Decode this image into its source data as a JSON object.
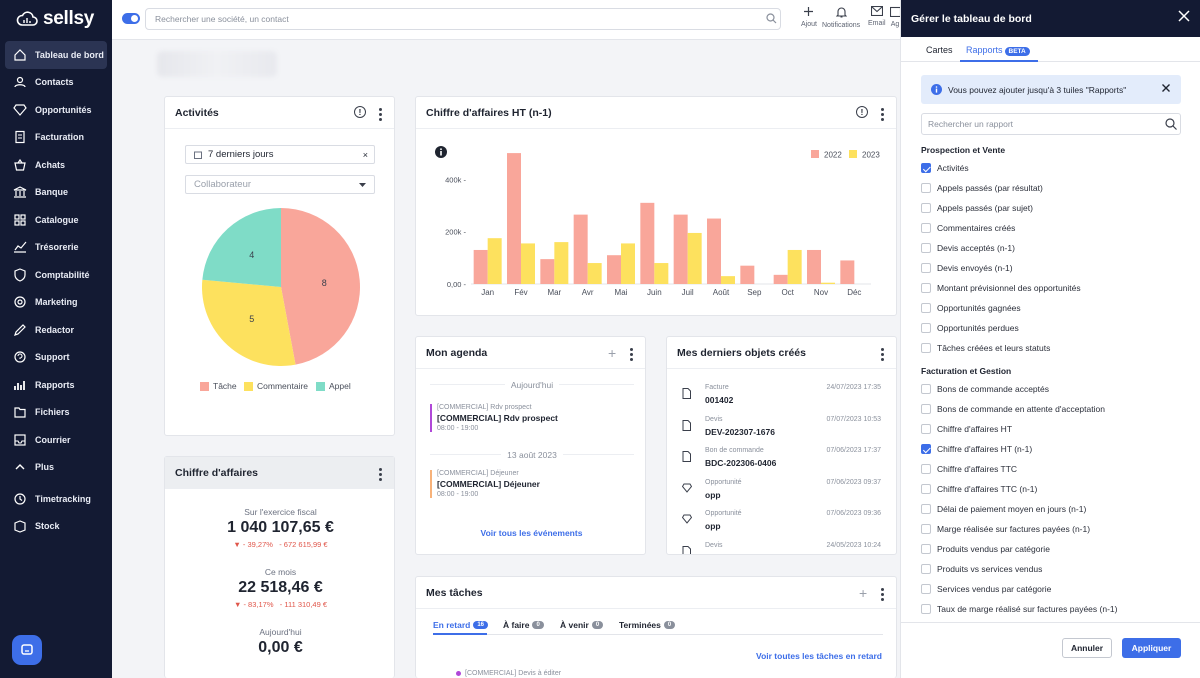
{
  "app": {
    "brand": "sellsy"
  },
  "sidebar": {
    "items": [
      {
        "label": "Tableau de bord",
        "icon": "home-icon",
        "active": true
      },
      {
        "label": "Contacts",
        "icon": "contacts-icon"
      },
      {
        "label": "Opportunités",
        "icon": "diamond-icon"
      },
      {
        "label": "Facturation",
        "icon": "invoice-icon"
      },
      {
        "label": "Achats",
        "icon": "basket-icon"
      },
      {
        "label": "Banque",
        "icon": "bank-icon"
      },
      {
        "label": "Catalogue",
        "icon": "grid-icon"
      },
      {
        "label": "Trésorerie",
        "icon": "chart-line-icon"
      },
      {
        "label": "Comptabilité",
        "icon": "shield-icon"
      },
      {
        "label": "Marketing",
        "icon": "target-icon"
      },
      {
        "label": "Redactor",
        "icon": "pen-icon"
      },
      {
        "label": "Support",
        "icon": "support-icon"
      },
      {
        "label": "Rapports",
        "icon": "bar-chart-icon"
      },
      {
        "label": "Fichiers",
        "icon": "files-icon"
      },
      {
        "label": "Courrier",
        "icon": "mail-box-icon"
      },
      {
        "label": "Plus",
        "icon": "chevron-up-icon"
      }
    ],
    "bottom_items": [
      {
        "label": "Timetracking",
        "icon": "clock-icon"
      },
      {
        "label": "Stock",
        "icon": "stock-icon"
      }
    ]
  },
  "topbar": {
    "search_placeholder": "Rechercher une société, un contact",
    "actions": [
      {
        "label": "Ajout",
        "icon": "plus-icon"
      },
      {
        "label": "Notifications",
        "icon": "bell-icon"
      },
      {
        "label": "Email",
        "icon": "envelope-icon"
      },
      {
        "label": "Ag",
        "icon": "calendar-icon"
      }
    ]
  },
  "activites": {
    "title": "Activités",
    "period": "7 derniers jours",
    "collaborator_placeholder": "Collaborateur",
    "legend": [
      "Tâche",
      "Commentaire",
      "Appel"
    ],
    "colors": {
      "tache": "#f9a69a",
      "commentaire": "#fde15e",
      "appel": "#7fdcc7"
    },
    "slices": [
      {
        "label": "Tâche",
        "value": 8
      },
      {
        "label": "Commentaire",
        "value": 5
      },
      {
        "label": "Appel",
        "value": 4
      }
    ]
  },
  "ca_n1": {
    "title": "Chiffre d'affaires HT (n-1)",
    "chart_data": {
      "type": "bar",
      "categories": [
        "Jan",
        "Fév",
        "Mar",
        "Avr",
        "Mai",
        "Juin",
        "Juil",
        "Août",
        "Sep",
        "Oct",
        "Nov",
        "Déc"
      ],
      "series": [
        {
          "name": "2022",
          "color": "#f9a69a",
          "values": [
            130,
            500,
            95,
            265,
            110,
            310,
            265,
            250,
            70,
            35,
            130,
            90
          ]
        },
        {
          "name": "2023",
          "color": "#fde15e",
          "values": [
            175,
            155,
            160,
            80,
            155,
            80,
            195,
            30,
            0,
            130,
            5,
            0
          ]
        }
      ],
      "yticks": [
        "0,00",
        "200k",
        "400k"
      ],
      "ylim": [
        0,
        550
      ],
      "legend_position": "top-right"
    }
  },
  "ca": {
    "title": "Chiffre d'affaires",
    "blocks": [
      {
        "label": "Sur l'exercice fiscal",
        "value": "1 040 107,65 €",
        "pct": "- 39,27%",
        "delta": "- 672 615,99 €"
      },
      {
        "label": "Ce mois",
        "value": "22 518,46 €",
        "pct": "- 83,17%",
        "delta": "- 111 310,49 €"
      },
      {
        "label": "Aujourd'hui",
        "value": "0,00 €"
      }
    ]
  },
  "agenda": {
    "title": "Mon agenda",
    "groups": [
      {
        "date": "Aujourd'hui",
        "events": [
          {
            "tag": "[COMMERCIAL] Rdv prospect",
            "title": "[COMMERCIAL] Rdv prospect",
            "time": "08:00 - 19:00",
            "color": "#b048d8"
          }
        ]
      },
      {
        "date": "13 août 2023",
        "events": [
          {
            "tag": "[COMMERCIAL] Déjeuner",
            "title": "[COMMERCIAL] Déjeuner",
            "time": "08:00 - 19:00",
            "color": "#f7b27a"
          }
        ]
      }
    ],
    "link": "Voir tous les événements"
  },
  "objets": {
    "title": "Mes derniers objets créés",
    "items": [
      {
        "type": "Facture",
        "ref": "001402",
        "date": "24/07/2023 17:35",
        "icon": "document-icon"
      },
      {
        "type": "Devis",
        "ref": "DEV-202307-1676",
        "date": "07/07/2023 10:53",
        "icon": "document-icon"
      },
      {
        "type": "Bon de commande",
        "ref": "BDC-202306-0406",
        "date": "07/06/2023 17:37",
        "icon": "document-icon"
      },
      {
        "type": "Opportunité",
        "ref": "opp",
        "date": "07/06/2023 09:37",
        "icon": "diamond-icon"
      },
      {
        "type": "Opportunité",
        "ref": "opp",
        "date": "07/06/2023 09:36",
        "icon": "diamond-icon"
      },
      {
        "type": "Devis",
        "ref": "",
        "date": "24/05/2023 10:24",
        "icon": "document-icon"
      }
    ]
  },
  "taches": {
    "title": "Mes tâches",
    "tabs": [
      {
        "label": "En retard",
        "count": "16"
      },
      {
        "label": "À faire",
        "count": "0"
      },
      {
        "label": "À venir",
        "count": "0"
      },
      {
        "label": "Terminées",
        "count": "0"
      }
    ],
    "link": "Voir toutes les tâches en retard",
    "first_item": "[COMMERCIAL] Devis à éditer"
  },
  "panel": {
    "title": "Gérer le tableau de bord",
    "tabs": [
      "Cartes",
      "Rapports"
    ],
    "beta": "BETA",
    "info": "Vous pouvez ajouter jusqu'à 3 tuiles \"Rapports\"",
    "search_placeholder": "Rechercher un rapport",
    "sections": [
      {
        "title": "Prospection et Vente",
        "items": [
          {
            "label": "Activités",
            "checked": true
          },
          {
            "label": "Appels passés (par résultat)",
            "checked": false
          },
          {
            "label": "Appels passés (par sujet)",
            "checked": false
          },
          {
            "label": "Commentaires créés",
            "checked": false
          },
          {
            "label": "Devis acceptés (n-1)",
            "checked": false
          },
          {
            "label": "Devis envoyés (n-1)",
            "checked": false
          },
          {
            "label": "Montant prévisionnel des opportunités",
            "checked": false
          },
          {
            "label": "Opportunités gagnées",
            "checked": false
          },
          {
            "label": "Opportunités perdues",
            "checked": false
          },
          {
            "label": "Tâches créées et leurs statuts",
            "checked": false
          }
        ]
      },
      {
        "title": "Facturation et Gestion",
        "items": [
          {
            "label": "Bons de commande acceptés",
            "checked": false
          },
          {
            "label": "Bons de commande en attente d'acceptation",
            "checked": false
          },
          {
            "label": "Chiffre d'affaires HT",
            "checked": false
          },
          {
            "label": "Chiffre d'affaires HT (n-1)",
            "checked": true
          },
          {
            "label": "Chiffre d'affaires TTC",
            "checked": false
          },
          {
            "label": "Chiffre d'affaires TTC (n-1)",
            "checked": false
          },
          {
            "label": "Délai de paiement moyen en jours (n-1)",
            "checked": false
          },
          {
            "label": "Marge réalisée sur factures payées (n-1)",
            "checked": false
          },
          {
            "label": "Produits vendus par catégorie",
            "checked": false
          },
          {
            "label": "Produits vs services vendus",
            "checked": false
          },
          {
            "label": "Services vendus par catégorie",
            "checked": false
          },
          {
            "label": "Taux de marge réalisé sur factures payées (n-1)",
            "checked": false
          }
        ]
      }
    ],
    "cancel": "Annuler",
    "apply": "Appliquer"
  }
}
